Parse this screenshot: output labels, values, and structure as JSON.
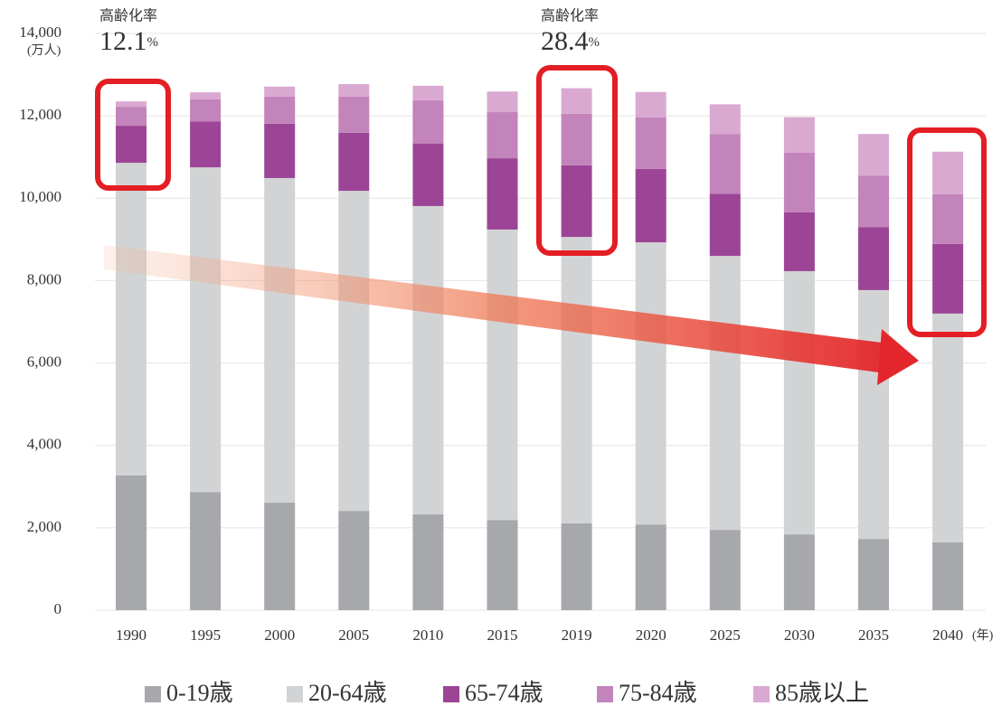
{
  "chart_data": {
    "type": "stacked-bar",
    "y_unit": "(万人)",
    "x_unit": "(年)",
    "categories": [
      "1990",
      "1995",
      "2000",
      "2005",
      "2010",
      "2015",
      "2019",
      "2020",
      "2025",
      "2030",
      "2035",
      "2040"
    ],
    "series": [
      {
        "name": "0-19歳",
        "color": "#a7a8ab",
        "values": [
          3270,
          2870,
          2610,
          2410,
          2330,
          2190,
          2110,
          2080,
          1950,
          1840,
          1730,
          1650
        ]
      },
      {
        "name": "20-64歳",
        "color": "#d2d3d4",
        "values": [
          7590,
          7880,
          7880,
          7770,
          7480,
          7050,
          6950,
          6850,
          6650,
          6390,
          6040,
          5550
        ]
      },
      {
        "name": "65-74歳",
        "color": "#9c4596",
        "values": [
          900,
          1110,
          1320,
          1410,
          1520,
          1730,
          1740,
          1780,
          1510,
          1430,
          1530,
          1690
        ]
      },
      {
        "name": "75-84歳",
        "color": "#c383bb",
        "values": [
          460,
          540,
          660,
          880,
          1050,
          1120,
          1250,
          1250,
          1450,
          1450,
          1250,
          1210
        ]
      },
      {
        "name": "85歳以上",
        "color": "#d9a9d2",
        "values": [
          130,
          170,
          240,
          300,
          350,
          500,
          620,
          620,
          720,
          860,
          1010,
          1030
        ]
      }
    ],
    "ylim": [
      0,
      14000
    ],
    "yticks": [
      0,
      {
        "value": 2000,
        "label": "2,000"
      },
      {
        "value": 4000,
        "label": "4,000"
      },
      {
        "value": 6000,
        "label": "6,000"
      },
      {
        "value": 8000,
        "label": "8,000"
      },
      {
        "value": 10000,
        "label": "10,000"
      },
      {
        "value": 12000,
        "label": "12,000"
      },
      {
        "value": 14000,
        "label": "14,000"
      }
    ],
    "grid": true,
    "annotations": [
      {
        "label": "高齢化率",
        "rate": "12.1",
        "unit": "%"
      },
      {
        "label": "高齢化率",
        "rate": "28.4",
        "unit": "%"
      }
    ]
  }
}
